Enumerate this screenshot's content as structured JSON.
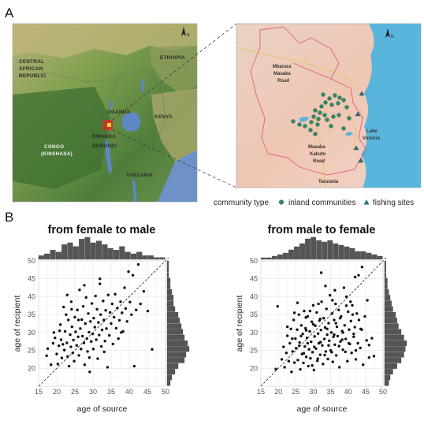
{
  "figure": {
    "panel_a_label": "A",
    "panel_b_label": "B"
  },
  "map": {
    "country_labels": [
      "ETHIOPIA",
      "CENTRAL",
      "AFRICAN",
      "REPUBLIC",
      "UGANDA",
      "KENYA",
      "RWANDA",
      "BURUNDI",
      "CONGO",
      "(KINSHASA)",
      "TANZANIA"
    ],
    "north_label": "N",
    "inset_labels": {
      "mbarara_1": "Mbarara",
      "mbarara_2": "Masaka",
      "mbarara_3": "Road",
      "kakuto_1": "Masaka",
      "kakuto_2": "Kakuto",
      "kakuto_3": "Road",
      "lake_1": "Lake",
      "lake_2": "Victoria",
      "tanzania": "Tanzania"
    },
    "legend": {
      "title": "community type",
      "inland": "inland communities",
      "fishing": "fishing sites",
      "inland_color": "#2e8b6a",
      "fishing_color": "#2a6f7a"
    }
  },
  "chart_data": [
    {
      "type": "scatter",
      "title": "from female to male",
      "xlabel": "age of source",
      "ylabel": "age of recipient",
      "xlim": [
        15,
        50
      ],
      "ylim": [
        15,
        50
      ],
      "xticks": [
        15,
        20,
        25,
        30,
        35,
        40,
        45,
        50
      ],
      "yticks": [
        20,
        25,
        30,
        35,
        40,
        45,
        50
      ],
      "reference_line": "y = x (dashed)",
      "marginal_histograms": true,
      "points": [
        [
          17.2,
          23.5
        ],
        [
          17.5,
          25.5
        ],
        [
          18.4,
          21.0
        ],
        [
          19.2,
          30.0
        ],
        [
          19.5,
          28.5
        ],
        [
          20.0,
          24.0
        ],
        [
          20.3,
          21.2
        ],
        [
          20.6,
          26.3
        ],
        [
          21.0,
          32.2
        ],
        [
          21.2,
          28.0
        ],
        [
          21.4,
          22.9
        ],
        [
          21.7,
          26.7
        ],
        [
          21.9,
          37.1
        ],
        [
          22.1,
          25.1
        ],
        [
          22.3,
          30.3
        ],
        [
          22.6,
          35.0
        ],
        [
          22.8,
          27.1
        ],
        [
          23.0,
          23.3
        ],
        [
          23.2,
          33.5
        ],
        [
          23.4,
          20.6
        ],
        [
          23.7,
          29.4
        ],
        [
          23.9,
          26.0
        ],
        [
          24.0,
          38.6
        ],
        [
          24.2,
          31.6
        ],
        [
          24.4,
          24.3
        ],
        [
          24.6,
          27.9
        ],
        [
          24.8,
          22.0
        ],
        [
          25.0,
          34.3
        ],
        [
          25.2,
          30.2
        ],
        [
          25.5,
          26.4
        ],
        [
          25.7,
          36.3
        ],
        [
          25.9,
          28.8
        ],
        [
          26.1,
          23.6
        ],
        [
          26.3,
          41.9
        ],
        [
          26.5,
          31.1
        ],
        [
          26.7,
          25.4
        ],
        [
          26.9,
          33.6
        ],
        [
          27.1,
          29.0
        ],
        [
          27.3,
          37.3
        ],
        [
          27.5,
          27.1
        ],
        [
          27.7,
          21.0
        ],
        [
          27.9,
          32.5
        ],
        [
          28.1,
          39.8
        ],
        [
          28.3,
          28.3
        ],
        [
          28.5,
          24.7
        ],
        [
          28.7,
          35.3
        ],
        [
          28.9,
          30.1
        ],
        [
          29.1,
          19.0
        ],
        [
          29.3,
          33.1
        ],
        [
          29.5,
          27.5
        ],
        [
          29.7,
          38.1
        ],
        [
          29.9,
          29.6
        ],
        [
          30.1,
          25.4
        ],
        [
          30.2,
          34.0
        ],
        [
          30.5,
          31.5
        ],
        [
          30.7,
          40.2
        ],
        [
          30.9,
          28.0
        ],
        [
          31.1,
          36.5
        ],
        [
          31.3,
          22.7
        ],
        [
          31.5,
          32.8
        ],
        [
          31.7,
          29.3
        ],
        [
          31.9,
          43.6
        ],
        [
          32.1,
          35.0
        ],
        [
          32.3,
          26.1
        ],
        [
          32.5,
          30.7
        ],
        [
          32.8,
          38.8
        ],
        [
          33.0,
          33.5
        ],
        [
          33.3,
          27.6
        ],
        [
          33.5,
          36.2
        ],
        [
          33.7,
          31.1
        ],
        [
          34.0,
          20.3
        ],
        [
          34.2,
          40.5
        ],
        [
          34.5,
          29.2
        ],
        [
          34.7,
          35.6
        ],
        [
          35.0,
          32.5
        ],
        [
          35.3,
          38.0
        ],
        [
          35.5,
          26.8
        ],
        [
          35.8,
          34.3
        ],
        [
          36.1,
          40.7
        ],
        [
          36.4,
          31.2
        ],
        [
          36.7,
          36.8
        ],
        [
          37.0,
          28.3
        ],
        [
          37.3,
          33.4
        ],
        [
          37.6,
          38.6
        ],
        [
          38.0,
          35.5
        ],
        [
          38.3,
          30.3
        ],
        [
          38.7,
          42.5
        ],
        [
          39.0,
          36.7
        ],
        [
          39.4,
          33.1
        ],
        [
          39.8,
          47.0
        ],
        [
          40.2,
          38.5
        ],
        [
          40.6,
          35.0
        ],
        [
          41.0,
          46.0
        ],
        [
          41.4,
          20.6
        ],
        [
          41.9,
          36.3
        ],
        [
          42.5,
          49.0
        ],
        [
          43.1,
          38.0
        ],
        [
          44.0,
          41.5
        ],
        [
          45.1,
          36.0
        ],
        [
          46.3,
          25.3
        ],
        [
          22.9,
          40.5
        ],
        [
          27.6,
          43.2
        ],
        [
          31.9,
          45.0
        ],
        [
          26.0,
          33.5
        ],
        [
          20.8,
          30.5
        ],
        [
          29.0,
          23.0
        ],
        [
          33.1,
          24.6
        ],
        [
          24.1,
          36.5
        ],
        [
          37.8,
          30.0
        ],
        [
          19.0,
          27.0
        ]
      ],
      "x_hist": [
        2,
        3,
        5,
        4,
        8,
        9,
        7,
        11,
        12,
        9,
        10,
        8,
        6,
        5,
        7,
        4,
        3,
        4,
        2,
        2,
        1,
        1
      ],
      "y_hist": [
        2,
        3,
        5,
        7,
        11,
        12,
        14,
        13,
        11,
        10,
        9,
        8,
        7,
        5,
        4,
        4,
        3,
        2,
        2,
        1,
        1,
        1
      ]
    },
    {
      "type": "scatter",
      "title": "from male to female",
      "xlabel": "age of source",
      "ylabel": "age of recipient",
      "xlim": [
        15,
        50
      ],
      "ylim": [
        15,
        50
      ],
      "xticks": [
        15,
        20,
        25,
        30,
        35,
        40,
        45,
        50
      ],
      "yticks": [
        20,
        25,
        30,
        35,
        40,
        45,
        50
      ],
      "reference_line": "y = x (dashed)",
      "marginal_histograms": true,
      "points": [
        [
          19.3,
          19.8
        ],
        [
          19.8,
          37.3
        ],
        [
          21.0,
          22.5
        ],
        [
          21.5,
          26.0
        ],
        [
          21.8,
          20.3
        ],
        [
          22.3,
          24.3
        ],
        [
          22.6,
          29.1
        ],
        [
          23.0,
          22.0
        ],
        [
          23.3,
          27.0
        ],
        [
          23.6,
          31.0
        ],
        [
          23.8,
          19.0
        ],
        [
          24.1,
          24.7
        ],
        [
          24.4,
          33.5
        ],
        [
          24.6,
          21.6
        ],
        [
          24.9,
          28.3
        ],
        [
          25.1,
          25.6
        ],
        [
          25.4,
          30.8
        ],
        [
          25.6,
          22.3
        ],
        [
          25.9,
          35.0
        ],
        [
          26.1,
          27.2
        ],
        [
          26.3,
          19.7
        ],
        [
          26.6,
          32.0
        ],
        [
          26.8,
          24.0
        ],
        [
          27.0,
          29.6
        ],
        [
          27.2,
          21.5
        ],
        [
          27.4,
          36.0
        ],
        [
          27.6,
          26.1
        ],
        [
          27.8,
          31.2
        ],
        [
          28.0,
          23.2
        ],
        [
          28.2,
          28.5
        ],
        [
          28.4,
          34.5
        ],
        [
          28.6,
          20.6
        ],
        [
          28.8,
          25.3
        ],
        [
          29.0,
          30.3
        ],
        [
          29.2,
          22.8
        ],
        [
          29.4,
          27.4
        ],
        [
          29.6,
          33.0
        ],
        [
          29.8,
          24.5
        ],
        [
          30.0,
          37.6
        ],
        [
          30.2,
          19.5
        ],
        [
          30.4,
          28.9
        ],
        [
          30.6,
          31.9
        ],
        [
          30.8,
          25.5
        ],
        [
          31.0,
          35.6
        ],
        [
          31.2,
          22.1
        ],
        [
          31.4,
          29.7
        ],
        [
          31.6,
          27.0
        ],
        [
          31.8,
          33.3
        ],
        [
          32.0,
          23.8
        ],
        [
          32.2,
          30.7
        ],
        [
          32.4,
          38.6
        ],
        [
          32.6,
          26.4
        ],
        [
          32.8,
          21.2
        ],
        [
          33.0,
          34.0
        ],
        [
          33.2,
          28.2
        ],
        [
          33.4,
          31.4
        ],
        [
          33.6,
          24.7
        ],
        [
          33.8,
          36.6
        ],
        [
          34.0,
          29.4
        ],
        [
          34.2,
          22.6
        ],
        [
          34.4,
          32.6
        ],
        [
          34.6,
          27.7
        ],
        [
          34.8,
          40.4
        ],
        [
          35.0,
          25.0
        ],
        [
          35.2,
          30.0
        ],
        [
          35.4,
          35.3
        ],
        [
          35.6,
          21.8
        ],
        [
          35.8,
          28.8
        ],
        [
          36.0,
          33.5
        ],
        [
          36.2,
          26.6
        ],
        [
          36.4,
          38.0
        ],
        [
          36.6,
          23.6
        ],
        [
          36.8,
          31.6
        ],
        [
          37.0,
          29.0
        ],
        [
          37.3,
          36.3
        ],
        [
          37.5,
          20.3
        ],
        [
          37.8,
          27.5
        ],
        [
          38.0,
          34.5
        ],
        [
          38.3,
          30.4
        ],
        [
          38.5,
          25.2
        ],
        [
          38.8,
          42.5
        ],
        [
          39.0,
          32.0
        ],
        [
          39.3,
          28.2
        ],
        [
          39.5,
          37.5
        ],
        [
          39.8,
          22.0
        ],
        [
          40.0,
          35.8
        ],
        [
          40.3,
          30.8
        ],
        [
          40.5,
          26.8
        ],
        [
          40.8,
          33.2
        ],
        [
          41.0,
          24.3
        ],
        [
          41.3,
          35.0
        ],
        [
          41.6,
          28.8
        ],
        [
          41.9,
          31.5
        ],
        [
          42.2,
          22.5
        ],
        [
          42.5,
          35.3
        ],
        [
          42.8,
          27.0
        ],
        [
          43.1,
          33.5
        ],
        [
          43.5,
          25.7
        ],
        [
          43.9,
          30.8
        ],
        [
          44.3,
          21.0
        ],
        [
          44.8,
          34.5
        ],
        [
          45.3,
          27.8
        ],
        [
          46.0,
          23.0
        ],
        [
          46.8,
          28.4
        ],
        [
          47.4,
          23.4
        ],
        [
          42.0,
          45.5
        ],
        [
          43.0,
          46.0
        ],
        [
          45.5,
          39.0
        ],
        [
          44.0,
          48.3
        ],
        [
          32.3,
          46.7
        ],
        [
          36.2,
          41.8
        ],
        [
          40.7,
          38.6
        ],
        [
          22.6,
          31.6
        ],
        [
          25.5,
          38.3
        ],
        [
          27.9,
          34.2
        ],
        [
          29.1,
          36.0
        ],
        [
          31.5,
          38.0
        ],
        [
          33.5,
          43.0
        ],
        [
          35.5,
          39.0
        ],
        [
          37.7,
          34.0
        ],
        [
          39.5,
          40.0
        ],
        [
          41.2,
          37.6
        ],
        [
          26.5,
          29.0
        ],
        [
          28.4,
          27.0
        ],
        [
          30.3,
          26.0
        ],
        [
          32.1,
          27.3
        ],
        [
          34.4,
          26.4
        ],
        [
          36.0,
          29.4
        ],
        [
          38.3,
          28.0
        ],
        [
          40.2,
          27.0
        ],
        [
          24.0,
          28.3
        ],
        [
          26.0,
          26.3
        ],
        [
          28.0,
          30.6
        ],
        [
          30.0,
          32.3
        ],
        [
          32.0,
          33.8
        ],
        [
          34.0,
          31.0
        ],
        [
          36.5,
          32.6
        ],
        [
          38.5,
          30.0
        ],
        [
          41.6,
          29.6
        ],
        [
          43.6,
          31.0
        ],
        [
          24.6,
          35.5
        ],
        [
          27.3,
          24.2
        ],
        [
          29.7,
          20.8
        ],
        [
          31.3,
          22.7
        ],
        [
          33.3,
          23.7
        ],
        [
          35.3,
          24.5
        ],
        [
          37.4,
          26.2
        ],
        [
          39.2,
          24.6
        ],
        [
          42.2,
          25.0
        ],
        [
          46.0,
          26.5
        ]
      ],
      "x_hist": [
        1,
        1,
        2,
        3,
        4,
        6,
        8,
        10,
        13,
        14,
        12,
        11,
        12,
        10,
        9,
        8,
        7,
        5,
        5,
        4,
        3,
        2
      ],
      "y_hist": [
        3,
        4,
        6,
        9,
        12,
        14,
        15,
        16,
        14,
        12,
        10,
        9,
        8,
        6,
        5,
        4,
        3,
        2,
        2,
        1,
        1,
        1
      ]
    }
  ]
}
